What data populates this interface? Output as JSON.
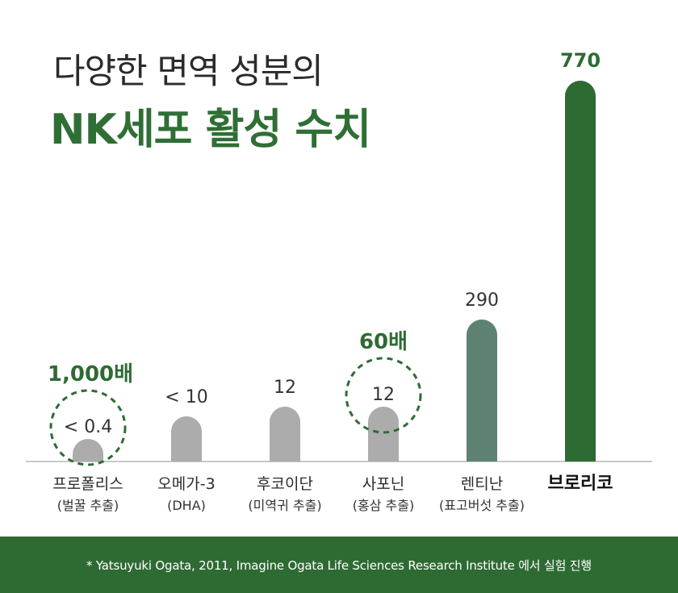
{
  "title": {
    "line1": "다양한 면역 성분의",
    "line2": "NK세포 활성 수치"
  },
  "chart_data": {
    "type": "bar",
    "categories": [
      "프로폴리스",
      "오메가-3",
      "후코이단",
      "사포닌",
      "렌티난",
      "브로리코"
    ],
    "sublabels": [
      "(벌꿀 추출)",
      "(DHA)",
      "(미역귀 추출)",
      "(홍삼 추출)",
      "(표고버섯 추출)",
      ""
    ],
    "values": [
      0.4,
      10,
      12,
      12,
      290,
      770
    ],
    "value_labels": [
      "< 0.4",
      "< 10",
      "12",
      "12",
      "290",
      "770"
    ],
    "colors": [
      "#acacac",
      "#acacac",
      "#acacac",
      "#acacac",
      "#5e8272",
      "#2e6b33"
    ],
    "highlights": [
      {
        "category": "프로폴리스",
        "label": "1,000배"
      },
      {
        "category": "사포닌",
        "label": "60배"
      }
    ],
    "title": "다양한 면역 성분의 NK세포 활성 수치",
    "xlabel": "",
    "ylabel": "",
    "grid": false,
    "legend": "none"
  },
  "footer": {
    "note": "* Yatsuyuki Ogata, 2011,   Imagine Ogata Life Sciences Research Institute 에서 실험 진행"
  }
}
